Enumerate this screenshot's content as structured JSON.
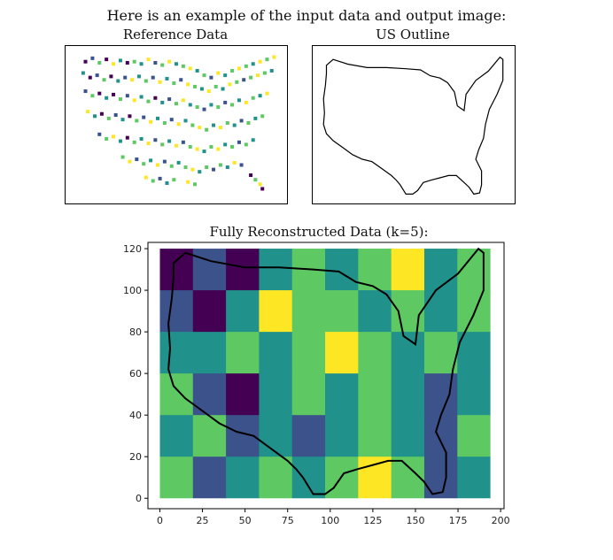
{
  "header": {
    "caption": "Here is an example of the input data and output image:",
    "reference_title": "Reference Data",
    "outline_title": "US Outline"
  },
  "chart_data": [
    {
      "type": "scatter",
      "title": "Reference Data",
      "colormap": [
        "#440154",
        "#3b528b",
        "#21918c",
        "#5ec962",
        "#fde725"
      ],
      "points": [
        [
          8,
          110,
          0
        ],
        [
          14,
          113,
          1
        ],
        [
          20,
          109,
          3
        ],
        [
          26,
          112,
          0
        ],
        [
          32,
          108,
          4
        ],
        [
          38,
          111,
          2
        ],
        [
          44,
          109,
          0
        ],
        [
          50,
          110,
          3
        ],
        [
          56,
          108,
          2
        ],
        [
          62,
          112,
          4
        ],
        [
          68,
          109,
          1
        ],
        [
          74,
          107,
          3
        ],
        [
          80,
          110,
          4
        ],
        [
          86,
          108,
          2
        ],
        [
          92,
          106,
          3
        ],
        [
          98,
          104,
          4
        ],
        [
          104,
          102,
          2
        ],
        [
          110,
          98,
          3
        ],
        [
          116,
          96,
          1
        ],
        [
          122,
          100,
          4
        ],
        [
          128,
          98,
          2
        ],
        [
          134,
          102,
          3
        ],
        [
          140,
          104,
          4
        ],
        [
          146,
          106,
          3
        ],
        [
          152,
          108,
          2
        ],
        [
          158,
          110,
          4
        ],
        [
          164,
          112,
          3
        ],
        [
          170,
          114,
          4
        ],
        [
          6,
          100,
          2
        ],
        [
          12,
          96,
          0
        ],
        [
          18,
          98,
          1
        ],
        [
          24,
          94,
          3
        ],
        [
          30,
          97,
          0
        ],
        [
          36,
          93,
          2
        ],
        [
          42,
          96,
          1
        ],
        [
          48,
          94,
          4
        ],
        [
          54,
          97,
          2
        ],
        [
          60,
          93,
          3
        ],
        [
          66,
          96,
          1
        ],
        [
          72,
          92,
          4
        ],
        [
          78,
          95,
          2
        ],
        [
          84,
          91,
          3
        ],
        [
          90,
          94,
          1
        ],
        [
          96,
          90,
          4
        ],
        [
          102,
          88,
          3
        ],
        [
          108,
          86,
          2
        ],
        [
          114,
          84,
          4
        ],
        [
          120,
          88,
          3
        ],
        [
          126,
          86,
          2
        ],
        [
          132,
          90,
          4
        ],
        [
          138,
          92,
          3
        ],
        [
          144,
          94,
          1
        ],
        [
          150,
          96,
          3
        ],
        [
          156,
          98,
          4
        ],
        [
          162,
          100,
          3
        ],
        [
          168,
          102,
          2
        ],
        [
          8,
          84,
          1
        ],
        [
          14,
          80,
          3
        ],
        [
          20,
          82,
          0
        ],
        [
          26,
          78,
          2
        ],
        [
          32,
          81,
          0
        ],
        [
          38,
          77,
          3
        ],
        [
          44,
          80,
          1
        ],
        [
          50,
          76,
          4
        ],
        [
          56,
          79,
          2
        ],
        [
          62,
          75,
          3
        ],
        [
          68,
          78,
          0
        ],
        [
          74,
          74,
          2
        ],
        [
          80,
          77,
          1
        ],
        [
          86,
          73,
          3
        ],
        [
          92,
          76,
          4
        ],
        [
          98,
          72,
          2
        ],
        [
          104,
          70,
          3
        ],
        [
          110,
          68,
          1
        ],
        [
          116,
          72,
          2
        ],
        [
          122,
          70,
          3
        ],
        [
          128,
          74,
          1
        ],
        [
          134,
          72,
          3
        ],
        [
          140,
          76,
          2
        ],
        [
          146,
          74,
          4
        ],
        [
          152,
          78,
          3
        ],
        [
          158,
          80,
          2
        ],
        [
          164,
          82,
          4
        ],
        [
          10,
          66,
          4
        ],
        [
          16,
          62,
          2
        ],
        [
          22,
          64,
          0
        ],
        [
          28,
          60,
          3
        ],
        [
          34,
          63,
          1
        ],
        [
          40,
          59,
          2
        ],
        [
          46,
          62,
          0
        ],
        [
          52,
          58,
          3
        ],
        [
          58,
          61,
          1
        ],
        [
          64,
          57,
          4
        ],
        [
          70,
          60,
          2
        ],
        [
          76,
          56,
          3
        ],
        [
          82,
          59,
          1
        ],
        [
          88,
          55,
          4
        ],
        [
          94,
          58,
          2
        ],
        [
          100,
          54,
          3
        ],
        [
          106,
          52,
          4
        ],
        [
          112,
          50,
          3
        ],
        [
          118,
          54,
          2
        ],
        [
          124,
          52,
          4
        ],
        [
          130,
          56,
          3
        ],
        [
          136,
          54,
          2
        ],
        [
          142,
          58,
          1
        ],
        [
          148,
          56,
          3
        ],
        [
          154,
          60,
          2
        ],
        [
          160,
          62,
          3
        ],
        [
          20,
          46,
          1
        ],
        [
          26,
          42,
          3
        ],
        [
          32,
          44,
          4
        ],
        [
          38,
          40,
          2
        ],
        [
          44,
          43,
          0
        ],
        [
          50,
          39,
          3
        ],
        [
          56,
          42,
          2
        ],
        [
          62,
          38,
          4
        ],
        [
          68,
          41,
          1
        ],
        [
          74,
          37,
          3
        ],
        [
          80,
          40,
          2
        ],
        [
          86,
          36,
          4
        ],
        [
          92,
          39,
          1
        ],
        [
          98,
          35,
          3
        ],
        [
          104,
          33,
          4
        ],
        [
          110,
          31,
          2
        ],
        [
          116,
          35,
          3
        ],
        [
          122,
          33,
          4
        ],
        [
          128,
          37,
          2
        ],
        [
          134,
          35,
          3
        ],
        [
          140,
          39,
          1
        ],
        [
          146,
          37,
          3
        ],
        [
          152,
          41,
          2
        ],
        [
          40,
          26,
          3
        ],
        [
          46,
          22,
          4
        ],
        [
          52,
          24,
          1
        ],
        [
          58,
          20,
          3
        ],
        [
          64,
          23,
          2
        ],
        [
          70,
          19,
          4
        ],
        [
          76,
          22,
          1
        ],
        [
          82,
          18,
          3
        ],
        [
          88,
          21,
          2
        ],
        [
          94,
          17,
          3
        ],
        [
          100,
          15,
          4
        ],
        [
          106,
          13,
          2
        ],
        [
          112,
          17,
          3
        ],
        [
          118,
          15,
          1
        ],
        [
          124,
          19,
          3
        ],
        [
          130,
          17,
          2
        ],
        [
          136,
          21,
          4
        ],
        [
          142,
          19,
          1
        ],
        [
          60,
          8,
          4
        ],
        [
          66,
          5,
          3
        ],
        [
          72,
          7,
          1
        ],
        [
          78,
          3,
          2
        ],
        [
          84,
          6,
          3
        ],
        [
          96,
          4,
          4
        ],
        [
          102,
          2,
          3
        ],
        [
          150,
          10,
          0
        ],
        [
          154,
          6,
          3
        ],
        [
          158,
          2,
          4
        ],
        [
          160,
          -2,
          0
        ]
      ]
    },
    {
      "type": "heatmap",
      "title": "Fully Reconstructed Data (k=5):",
      "x_ticks": [
        "0",
        "25",
        "50",
        "75",
        "100",
        "125",
        "150",
        "175",
        "200"
      ],
      "y_ticks": [
        "0",
        "20",
        "40",
        "60",
        "80",
        "100",
        "120"
      ],
      "xlim": [
        -7,
        202
      ],
      "ylim": [
        -5,
        123
      ],
      "image_extent": {
        "x": [
          0,
          194
        ],
        "y": [
          0,
          120
        ]
      },
      "colormap": [
        "#440154",
        "#3b528b",
        "#21918c",
        "#5ec962",
        "#fde725"
      ],
      "cells": {
        "cols": 10,
        "rows": 6,
        "values": [
          [
            0,
            1,
            0,
            2,
            3,
            2,
            3,
            4,
            2,
            3
          ],
          [
            1,
            0,
            2,
            4,
            3,
            3,
            2,
            3,
            2,
            3
          ],
          [
            2,
            2,
            3,
            2,
            3,
            4,
            3,
            2,
            3,
            2
          ],
          [
            3,
            1,
            0,
            2,
            3,
            2,
            3,
            2,
            1,
            2
          ],
          [
            2,
            3,
            1,
            2,
            1,
            2,
            3,
            2,
            1,
            3
          ],
          [
            3,
            1,
            2,
            3,
            2,
            3,
            4,
            3,
            1,
            2
          ]
        ]
      },
      "outline": [
        [
          8,
          113
        ],
        [
          15,
          118
        ],
        [
          30,
          114
        ],
        [
          50,
          111
        ],
        [
          70,
          111
        ],
        [
          90,
          110
        ],
        [
          105,
          109
        ],
        [
          115,
          104
        ],
        [
          125,
          102
        ],
        [
          133,
          98
        ],
        [
          140,
          90
        ],
        [
          143,
          78
        ],
        [
          150,
          74
        ],
        [
          152,
          88
        ],
        [
          162,
          100
        ],
        [
          175,
          108
        ],
        [
          187,
          120
        ],
        [
          190,
          118
        ],
        [
          190,
          100
        ],
        [
          184,
          88
        ],
        [
          176,
          75
        ],
        [
          172,
          62
        ],
        [
          170,
          50
        ],
        [
          165,
          40
        ],
        [
          162,
          32
        ],
        [
          168,
          22
        ],
        [
          168,
          10
        ],
        [
          166,
          3
        ],
        [
          160,
          2
        ],
        [
          155,
          8
        ],
        [
          150,
          12
        ],
        [
          142,
          18
        ],
        [
          134,
          18
        ],
        [
          125,
          16
        ],
        [
          116,
          14
        ],
        [
          108,
          12
        ],
        [
          102,
          5
        ],
        [
          97,
          2
        ],
        [
          90,
          2
        ],
        [
          84,
          10
        ],
        [
          80,
          14
        ],
        [
          75,
          18
        ],
        [
          65,
          24
        ],
        [
          55,
          30
        ],
        [
          45,
          32
        ],
        [
          35,
          36
        ],
        [
          25,
          42
        ],
        [
          15,
          48
        ],
        [
          8,
          54
        ],
        [
          5,
          62
        ],
        [
          6,
          72
        ],
        [
          5,
          84
        ],
        [
          7,
          96
        ],
        [
          8,
          106
        ],
        [
          8,
          113
        ]
      ]
    }
  ]
}
